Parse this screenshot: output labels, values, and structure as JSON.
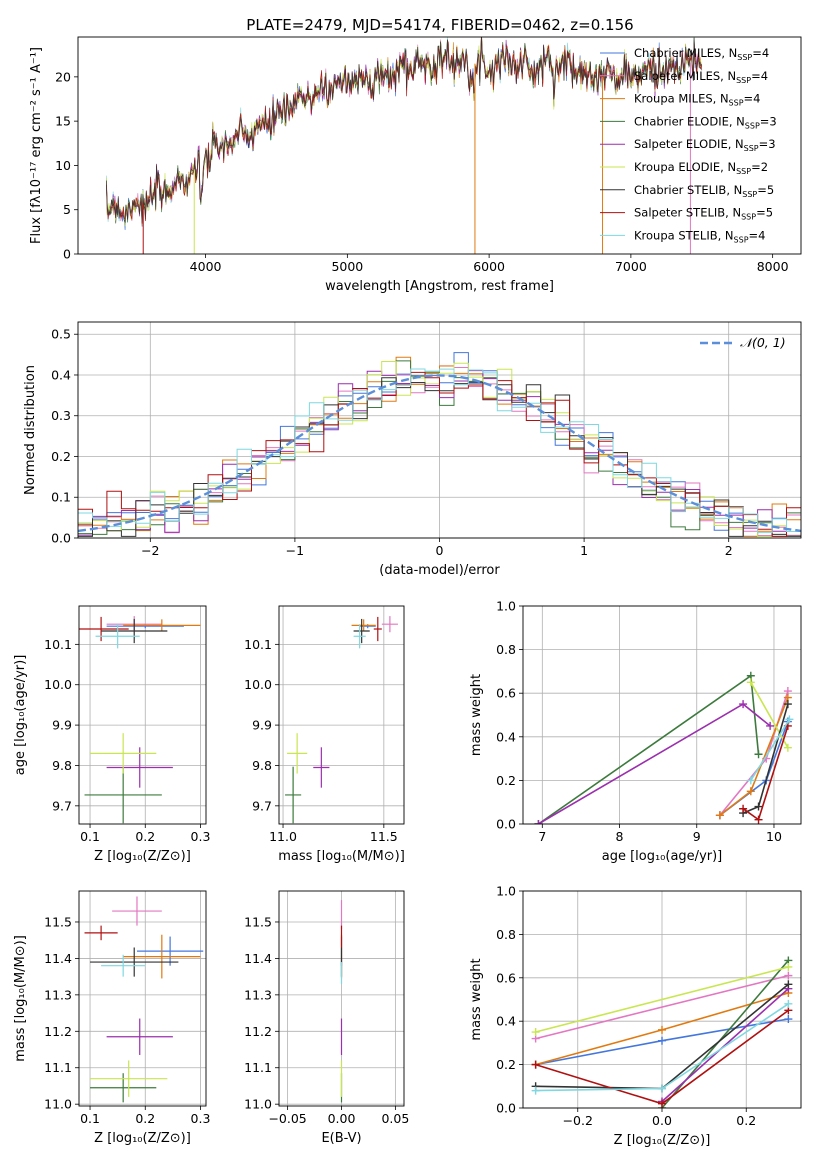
{
  "title": "PLATE=2479, MJD=54174, FIBERID=0462, z=0.156",
  "models": [
    {
      "label": "Chabrier MILES, N",
      "sub": "SSP",
      "n": "=4",
      "color": "#4477dd"
    },
    {
      "label": "Salpeter MILES, N",
      "sub": "SSP",
      "n": "=4",
      "color": "#e377c2"
    },
    {
      "label": "Kroupa MILES, N",
      "sub": "SSP",
      "n": "=4",
      "color": "#e07a10"
    },
    {
      "label": "Chabrier ELODIE, N",
      "sub": "SSP",
      "n": "=3",
      "color": "#3d7a3d"
    },
    {
      "label": "Salpeter ELODIE, N",
      "sub": "SSP",
      "n": "=3",
      "color": "#9b2fae"
    },
    {
      "label": "Kroupa ELODIE, N",
      "sub": "SSP",
      "n": "=2",
      "color": "#c8e650"
    },
    {
      "label": "Chabrier STELIB, N",
      "sub": "SSP",
      "n": "=5",
      "color": "#333333"
    },
    {
      "label": "Salpeter STELIB, N",
      "sub": "SSP",
      "n": "=5",
      "color": "#b01010"
    },
    {
      "label": "Kroupa STELIB, N",
      "sub": "SSP",
      "n": "=4",
      "color": "#7fd8e0"
    }
  ],
  "chart_data": [
    {
      "id": "spectrum",
      "type": "line",
      "xlabel": "wavelength [Angstrom, rest frame]",
      "ylabel": "Flux [fλ10⁻¹⁷ erg cm⁻² s⁻¹ A⁻¹]",
      "xlim": [
        3100,
        8200
      ],
      "ylim": [
        0,
        24.5
      ],
      "xticks": [
        4000,
        5000,
        6000,
        7000,
        8000
      ],
      "yticks": [
        0,
        5,
        10,
        15,
        20
      ],
      "grid": false,
      "legend": "right",
      "continuum": {
        "x": [
          3300,
          3400,
          3550,
          3700,
          3850,
          3950,
          4050,
          4150,
          4300,
          4450,
          4600,
          4750,
          4900,
          5000,
          5100,
          5200,
          5300,
          5400,
          5500,
          5600,
          5700,
          5800,
          5900,
          6000,
          6100,
          6200,
          6300,
          6400,
          6500,
          6600,
          6700,
          6800,
          6900,
          7000,
          7100,
          7200,
          7300,
          7400,
          7500
        ],
        "y": [
          5.3,
          5.0,
          5.6,
          7.0,
          8.5,
          10.0,
          11.5,
          12.5,
          13.5,
          15.0,
          16.5,
          18.0,
          19.0,
          19.5,
          20.2,
          19.8,
          20.3,
          21.0,
          21.5,
          21.6,
          21.8,
          22.0,
          21.5,
          21.0,
          22.0,
          21.5,
          21.0,
          21.2,
          21.5,
          21.0,
          20.5,
          20.0,
          20.2,
          20.0,
          20.5,
          20.8,
          21.0,
          21.5,
          22.0
        ]
      },
      "wavelength_range": [
        3300,
        7500
      ]
    },
    {
      "id": "residuals",
      "type": "histogram",
      "xlabel": "(data-model)/error",
      "ylabel": "Normed distribution",
      "xlim": [
        -2.5,
        2.5
      ],
      "ylim": [
        0,
        0.53
      ],
      "xticks": [
        -2,
        -1,
        0,
        1,
        2
      ],
      "yticks": [
        0,
        0.1,
        0.2,
        0.3,
        0.4,
        0.5
      ],
      "grid": true,
      "bin_width": 0.1,
      "reference": {
        "name": "𝒩(0, 1)",
        "color": "#5b8fd9",
        "style": "dashed"
      },
      "legend": "top-right"
    },
    {
      "id": "age_vs_Z",
      "type": "scatter",
      "xlabel": "Z [log₁₀(Z/Z⊙)]",
      "ylabel": "age  [log₁₀(age/yr)]",
      "xlim": [
        0.08,
        0.31
      ],
      "ylim": [
        9.655,
        10.195
      ],
      "xticks": [
        0.1,
        0.2,
        0.3
      ],
      "yticks": [
        9.7,
        9.8,
        9.9,
        10.0,
        10.1
      ],
      "grid": true,
      "points": [
        {
          "m": 0,
          "x": 0.2,
          "xerr": 0.07,
          "y": 10.145,
          "yerr": 0.005
        },
        {
          "m": 1,
          "x": 0.18,
          "xerr": 0.05,
          "y": 10.15,
          "yerr": 0.02
        },
        {
          "m": 2,
          "x": 0.23,
          "xerr": 0.07,
          "y": 10.147,
          "yerr": 0.015
        },
        {
          "m": 3,
          "x": 0.16,
          "xerr": 0.07,
          "y": 9.727,
          "yerr": 0.07
        },
        {
          "m": 4,
          "x": 0.19,
          "xerr": 0.06,
          "y": 9.795,
          "yerr": 0.05
        },
        {
          "m": 5,
          "x": 0.16,
          "xerr": 0.06,
          "y": 9.83,
          "yerr": 0.05
        },
        {
          "m": 6,
          "x": 0.18,
          "xerr": 0.06,
          "y": 10.133,
          "yerr": 0.03
        },
        {
          "m": 7,
          "x": 0.12,
          "xerr": 0.05,
          "y": 10.138,
          "yerr": 0.03
        },
        {
          "m": 8,
          "x": 0.15,
          "xerr": 0.04,
          "y": 10.12,
          "yerr": 0.03
        }
      ]
    },
    {
      "id": "age_vs_mass",
      "type": "scatter",
      "xlabel": "mass [log₁₀(M/M⊙)]",
      "ylabel": "",
      "xlim": [
        10.98,
        11.6
      ],
      "ylim": [
        9.655,
        10.195
      ],
      "xticks": [
        11.0,
        11.5
      ],
      "yticks": [
        9.7,
        9.8,
        9.9,
        10.0,
        10.1
      ],
      "grid": true,
      "points": [
        {
          "m": 0,
          "x": 11.42,
          "xerr": 0.04,
          "y": 10.145,
          "yerr": 0.005
        },
        {
          "m": 1,
          "x": 11.53,
          "xerr": 0.04,
          "y": 10.15,
          "yerr": 0.02
        },
        {
          "m": 2,
          "x": 11.4,
          "xerr": 0.06,
          "y": 10.147,
          "yerr": 0.015
        },
        {
          "m": 3,
          "x": 11.05,
          "xerr": 0.04,
          "y": 9.727,
          "yerr": 0.07
        },
        {
          "m": 4,
          "x": 11.19,
          "xerr": 0.04,
          "y": 9.795,
          "yerr": 0.05
        },
        {
          "m": 5,
          "x": 11.07,
          "xerr": 0.05,
          "y": 9.83,
          "yerr": 0.05
        },
        {
          "m": 6,
          "x": 11.39,
          "xerr": 0.04,
          "y": 10.133,
          "yerr": 0.03
        },
        {
          "m": 7,
          "x": 11.47,
          "xerr": 0.02,
          "y": 10.138,
          "yerr": 0.03
        },
        {
          "m": 8,
          "x": 11.38,
          "xerr": 0.03,
          "y": 10.12,
          "yerr": 0.03
        }
      ]
    },
    {
      "id": "weight_vs_age",
      "type": "line",
      "xlabel": "age  [log₁₀(age/yr)]",
      "ylabel": "mass weight",
      "xlim": [
        6.75,
        10.35
      ],
      "ylim": [
        0,
        1
      ],
      "xticks": [
        7,
        8,
        9,
        10
      ],
      "yticks": [
        0.0,
        0.2,
        0.4,
        0.6,
        0.8,
        1.0
      ],
      "grid": true,
      "series": [
        {
          "m": 0,
          "x": [
            9.3,
            9.9,
            10.18
          ],
          "y": [
            0.04,
            0.2,
            0.47
          ]
        },
        {
          "m": 1,
          "x": [
            9.3,
            9.9,
            10.18
          ],
          "y": [
            0.04,
            0.3,
            0.61
          ]
        },
        {
          "m": 2,
          "x": [
            9.3,
            9.7,
            10.18
          ],
          "y": [
            0.04,
            0.15,
            0.58
          ]
        },
        {
          "m": 3,
          "x": [
            6.95,
            9.7,
            9.8
          ],
          "y": [
            0.0,
            0.68,
            0.32
          ]
        },
        {
          "m": 4,
          "x": [
            6.95,
            9.6,
            9.95
          ],
          "y": [
            0.0,
            0.55,
            0.45
          ]
        },
        {
          "m": 5,
          "x": [
            9.7,
            10.18
          ],
          "y": [
            0.65,
            0.35
          ]
        },
        {
          "m": 6,
          "x": [
            9.6,
            9.8,
            10.18
          ],
          "y": [
            0.05,
            0.08,
            0.55
          ]
        },
        {
          "m": 7,
          "x": [
            9.6,
            9.8,
            10.18
          ],
          "y": [
            0.07,
            0.02,
            0.45
          ]
        },
        {
          "m": 8,
          "x": [
            9.7,
            10.2
          ],
          "y": [
            0.2,
            0.48
          ]
        }
      ]
    },
    {
      "id": "mass_vs_Z",
      "type": "scatter",
      "xlabel": "Z [log₁₀(Z/Z⊙)]",
      "ylabel": "mass [log₁₀(M/M⊙)]",
      "xlim": [
        0.08,
        0.31
      ],
      "ylim": [
        10.995,
        11.585
      ],
      "xticks": [
        0.1,
        0.2,
        0.3
      ],
      "yticks": [
        11.0,
        11.1,
        11.2,
        11.3,
        11.4,
        11.5
      ],
      "grid": true,
      "points": [
        {
          "m": 0,
          "x": 0.245,
          "xerr": 0.06,
          "y": 11.42,
          "yerr": 0.04
        },
        {
          "m": 1,
          "x": 0.185,
          "xerr": 0.045,
          "y": 11.53,
          "yerr": 0.04
        },
        {
          "m": 2,
          "x": 0.23,
          "xerr": 0.07,
          "y": 11.405,
          "yerr": 0.06
        },
        {
          "m": 3,
          "x": 0.16,
          "xerr": 0.06,
          "y": 11.045,
          "yerr": 0.04
        },
        {
          "m": 4,
          "x": 0.19,
          "xerr": 0.06,
          "y": 11.185,
          "yerr": 0.05
        },
        {
          "m": 5,
          "x": 0.17,
          "xerr": 0.07,
          "y": 11.07,
          "yerr": 0.05
        },
        {
          "m": 6,
          "x": 0.18,
          "xerr": 0.08,
          "y": 11.39,
          "yerr": 0.04
        },
        {
          "m": 7,
          "x": 0.12,
          "xerr": 0.03,
          "y": 11.47,
          "yerr": 0.02
        },
        {
          "m": 8,
          "x": 0.16,
          "xerr": 0.04,
          "y": 11.38,
          "yerr": 0.03
        }
      ]
    },
    {
      "id": "mass_vs_EBV",
      "type": "scatter",
      "xlabel": "E(B-V)",
      "ylabel": "",
      "xlim": [
        -0.058,
        0.058
      ],
      "ylim": [
        10.995,
        11.585
      ],
      "xticks": [
        -0.05,
        0.0,
        0.05
      ],
      "yticks": [
        11.0,
        11.1,
        11.2,
        11.3,
        11.4,
        11.5
      ],
      "grid": true,
      "points": [
        {
          "m": 0,
          "x": 0.0,
          "xerr": 0,
          "y": 11.42,
          "yerr": 0.04
        },
        {
          "m": 1,
          "x": 0.0,
          "xerr": 0,
          "y": 11.52,
          "yerr": 0.04
        },
        {
          "m": 2,
          "x": 0.0,
          "xerr": 0,
          "y": 11.405,
          "yerr": 0.06
        },
        {
          "m": 3,
          "x": 0.0,
          "xerr": 0,
          "y": 11.045,
          "yerr": 0.04
        },
        {
          "m": 4,
          "x": 0.0,
          "xerr": 0,
          "y": 11.185,
          "yerr": 0.05
        },
        {
          "m": 5,
          "x": 0.0,
          "xerr": 0,
          "y": 11.07,
          "yerr": 0.05
        },
        {
          "m": 6,
          "x": 0.0,
          "xerr": 0,
          "y": 11.39,
          "yerr": 0.04
        },
        {
          "m": 7,
          "x": 0.0,
          "xerr": 0,
          "y": 11.46,
          "yerr": 0.03
        },
        {
          "m": 8,
          "x": 0.0,
          "xerr": 0,
          "y": 11.36,
          "yerr": 0.03
        }
      ]
    },
    {
      "id": "weight_vs_Z",
      "type": "line",
      "xlabel": "Z [log₁₀(Z/Z⊙)]",
      "ylabel": "mass weight",
      "xlim": [
        -0.33,
        0.33
      ],
      "ylim": [
        0,
        1
      ],
      "xticks": [
        -0.2,
        0.0,
        0.2
      ],
      "yticks": [
        0.0,
        0.2,
        0.4,
        0.6,
        0.8,
        1.0
      ],
      "grid": true,
      "series": [
        {
          "m": 0,
          "x": [
            -0.3,
            0.0,
            0.3
          ],
          "y": [
            0.2,
            0.31,
            0.41
          ]
        },
        {
          "m": 1,
          "x": [
            -0.3,
            0.3
          ],
          "y": [
            0.32,
            0.61
          ]
        },
        {
          "m": 2,
          "x": [
            -0.3,
            0.0,
            0.3
          ],
          "y": [
            0.2,
            0.36,
            0.53
          ]
        },
        {
          "m": 3,
          "x": [
            0.0,
            0.3
          ],
          "y": [
            0.0,
            0.68
          ]
        },
        {
          "m": 4,
          "x": [
            0.0,
            0.3
          ],
          "y": [
            0.03,
            0.55
          ]
        },
        {
          "m": 5,
          "x": [
            -0.3,
            0.3
          ],
          "y": [
            0.35,
            0.65
          ]
        },
        {
          "m": 6,
          "x": [
            -0.3,
            0.0,
            0.3
          ],
          "y": [
            0.1,
            0.09,
            0.57
          ]
        },
        {
          "m": 7,
          "x": [
            -0.3,
            0.0,
            0.3
          ],
          "y": [
            0.2,
            0.02,
            0.45
          ]
        },
        {
          "m": 8,
          "x": [
            -0.3,
            0.0,
            0.3
          ],
          "y": [
            0.08,
            0.09,
            0.48
          ]
        }
      ]
    }
  ]
}
